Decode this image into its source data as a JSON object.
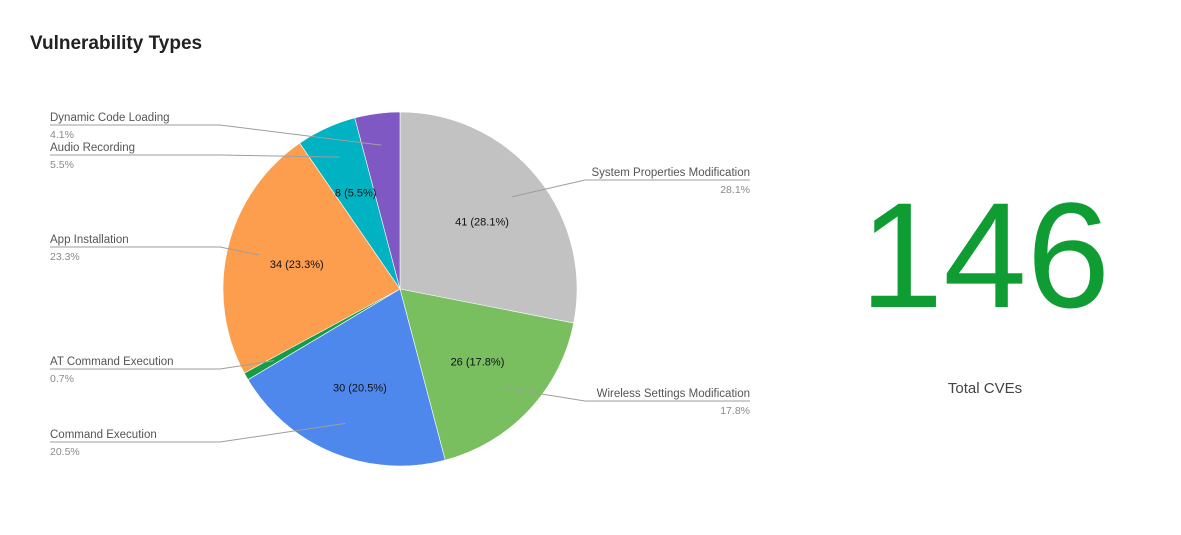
{
  "title": "Vulnerability Types",
  "scorecard": {
    "value": "146",
    "label": "Total CVEs",
    "color": "#0f9d33"
  },
  "chart_data": {
    "type": "pie",
    "title": "Vulnerability Types",
    "total": 146,
    "slices": [
      {
        "name": "System Properties Modification",
        "value": 41,
        "percent": "28.1%",
        "label": "41 (28.1%)",
        "color": "#c2c2c2"
      },
      {
        "name": "Wireless Settings Modification",
        "value": 26,
        "percent": "17.8%",
        "label": "26 (17.8%)",
        "color": "#79be5f"
      },
      {
        "name": "Command Execution",
        "value": 30,
        "percent": "20.5%",
        "label": "30 (20.5%)",
        "color": "#4f88ec"
      },
      {
        "name": "AT Command Execution",
        "value": 1,
        "percent": "0.7%",
        "label": "",
        "color": "#169c45"
      },
      {
        "name": "App Installation",
        "value": 34,
        "percent": "23.3%",
        "label": "34 (23.3%)",
        "color": "#fd9e4f"
      },
      {
        "name": "Audio Recording",
        "value": 8,
        "percent": "5.5%",
        "label": "8 (5.5%)",
        "color": "#00b2c2"
      },
      {
        "name": "Dynamic Code Loading",
        "value": 6,
        "percent": "4.1%",
        "label": "",
        "color": "#8058c4"
      }
    ],
    "legend": "callout labels beside slices"
  }
}
